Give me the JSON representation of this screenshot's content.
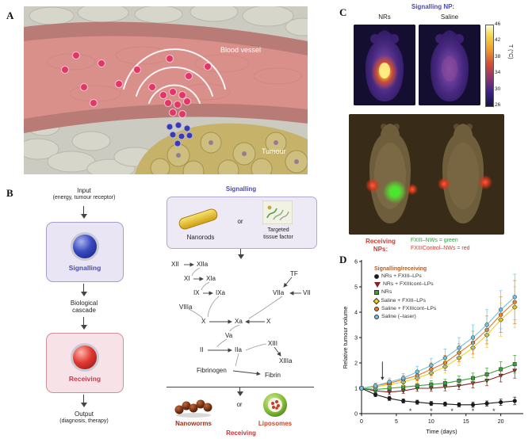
{
  "panels": {
    "a": {
      "label": "A",
      "blood_vessel": "Blood vessel",
      "tumour": "Tumour"
    },
    "b": {
      "label": "B",
      "flow": {
        "input1": "Input",
        "input2": "(energy, tumour receptor)",
        "signalling": "Signalling",
        "cascade1": "Biological",
        "cascade2": "cascade",
        "receiving": "Receiving",
        "output1": "Output",
        "output2": "(diagnosis, therapy)"
      },
      "signalling_header": "Signalling",
      "nanorods": "Nanorods",
      "or1": "or",
      "ttf1": "Targeted",
      "ttf2": "tissue factor",
      "factors": {
        "xii": "XII",
        "xiia": "XIIa",
        "xi": "XI",
        "xia": "XIa",
        "ix": "IX",
        "ixa": "IXa",
        "tf": "TF",
        "viia": "VIIa",
        "vii": "VII",
        "viiia": "VIIIa",
        "x1": "X",
        "xa": "Xa",
        "x2": "X",
        "va": "Va",
        "ii": "II",
        "iia": "IIa",
        "xiii": "XIII",
        "xiiia": "XIIIa",
        "fibrinogen": "Fibrinogen",
        "fibrin": "Fibrin"
      },
      "nanoworms": "Nanoworms",
      "or2": "or",
      "liposomes": "Liposomes",
      "receiving_footer": "Receiving"
    },
    "c": {
      "label": "C",
      "header": "Signalling NP:",
      "col_nrs": "NRs",
      "col_saline": "Saline",
      "colorbar": {
        "ticks": [
          "46",
          "42",
          "38",
          "34",
          "30",
          "26"
        ],
        "unit": "T (°C)"
      },
      "receiving1": "Receiving",
      "receiving2": "NPs:",
      "legend_green": "FXIII–NWs = green",
      "legend_red": "FXIIIControl–NWs = red"
    },
    "d": {
      "label": "D"
    }
  },
  "chart_data": {
    "type": "line",
    "xlabel": "Time (days)",
    "ylabel": "Relative tumour volume",
    "xlim": [
      0,
      23
    ],
    "ylim": [
      0,
      6
    ],
    "xticks": [
      0,
      5,
      10,
      15,
      20
    ],
    "yticks": [
      0,
      1,
      2,
      3,
      4,
      5,
      6
    ],
    "legend_title": "Signalling/receiving",
    "x": [
      0,
      2,
      4,
      6,
      8,
      10,
      12,
      14,
      16,
      18,
      20,
      22
    ],
    "series": [
      {
        "name": "NRs + FXIII–LPs",
        "color": "#1a1a1a",
        "marker": "circle",
        "values": [
          1.0,
          0.75,
          0.6,
          0.5,
          0.45,
          0.4,
          0.38,
          0.35,
          0.35,
          0.4,
          0.45,
          0.5
        ],
        "errors": [
          0.08,
          0.08,
          0.08,
          0.08,
          0.08,
          0.08,
          0.08,
          0.08,
          0.1,
          0.1,
          0.12,
          0.15
        ]
      },
      {
        "name": "NRs + FXIIIcont–LPs",
        "color": "#8b2020",
        "marker": "triangle-down",
        "values": [
          1.0,
          0.9,
          0.85,
          0.9,
          1.0,
          1.0,
          1.05,
          1.1,
          1.2,
          1.3,
          1.5,
          1.7
        ],
        "errors": [
          0.08,
          0.08,
          0.1,
          0.1,
          0.12,
          0.12,
          0.15,
          0.15,
          0.18,
          0.2,
          0.25,
          0.3
        ]
      },
      {
        "name": "NRs",
        "color": "#3aa03a",
        "marker": "square",
        "values": [
          1.0,
          0.95,
          1.0,
          1.05,
          1.1,
          1.15,
          1.2,
          1.3,
          1.4,
          1.55,
          1.75,
          1.95
        ],
        "errors": [
          0.08,
          0.1,
          0.1,
          0.12,
          0.12,
          0.15,
          0.15,
          0.18,
          0.2,
          0.25,
          0.3,
          0.35
        ]
      },
      {
        "name": "Saline + FXIII–LPs",
        "color": "#f0d020",
        "marker": "diamond",
        "values": [
          1.0,
          1.05,
          1.15,
          1.25,
          1.4,
          1.6,
          1.85,
          2.2,
          2.6,
          3.1,
          3.7,
          4.2
        ],
        "errors": [
          0.08,
          0.1,
          0.12,
          0.15,
          0.18,
          0.2,
          0.25,
          0.3,
          0.4,
          0.5,
          0.65,
          0.8
        ]
      },
      {
        "name": "Saline + FXIIIcont–LPs",
        "color": "#e87820",
        "marker": "circle",
        "values": [
          1.0,
          1.1,
          1.2,
          1.35,
          1.5,
          1.75,
          2.0,
          2.4,
          2.8,
          3.3,
          3.9,
          4.4
        ],
        "errors": [
          0.08,
          0.1,
          0.12,
          0.15,
          0.2,
          0.25,
          0.3,
          0.35,
          0.45,
          0.55,
          0.7,
          0.85
        ]
      },
      {
        "name": "Saline (–laser)",
        "color": "#70c0e0",
        "marker": "circle",
        "values": [
          1.0,
          1.1,
          1.25,
          1.4,
          1.65,
          1.9,
          2.2,
          2.6,
          3.0,
          3.5,
          4.1,
          4.6
        ],
        "errors": [
          0.08,
          0.1,
          0.15,
          0.18,
          0.22,
          0.28,
          0.35,
          0.4,
          0.5,
          0.6,
          0.75,
          0.9
        ]
      }
    ],
    "annotation_arrow": {
      "x": 3,
      "y_from": 2.05,
      "y_to": 1.35
    },
    "asterisks": {
      "x": [
        7,
        10,
        13,
        16,
        19
      ],
      "y": 0.12
    }
  }
}
